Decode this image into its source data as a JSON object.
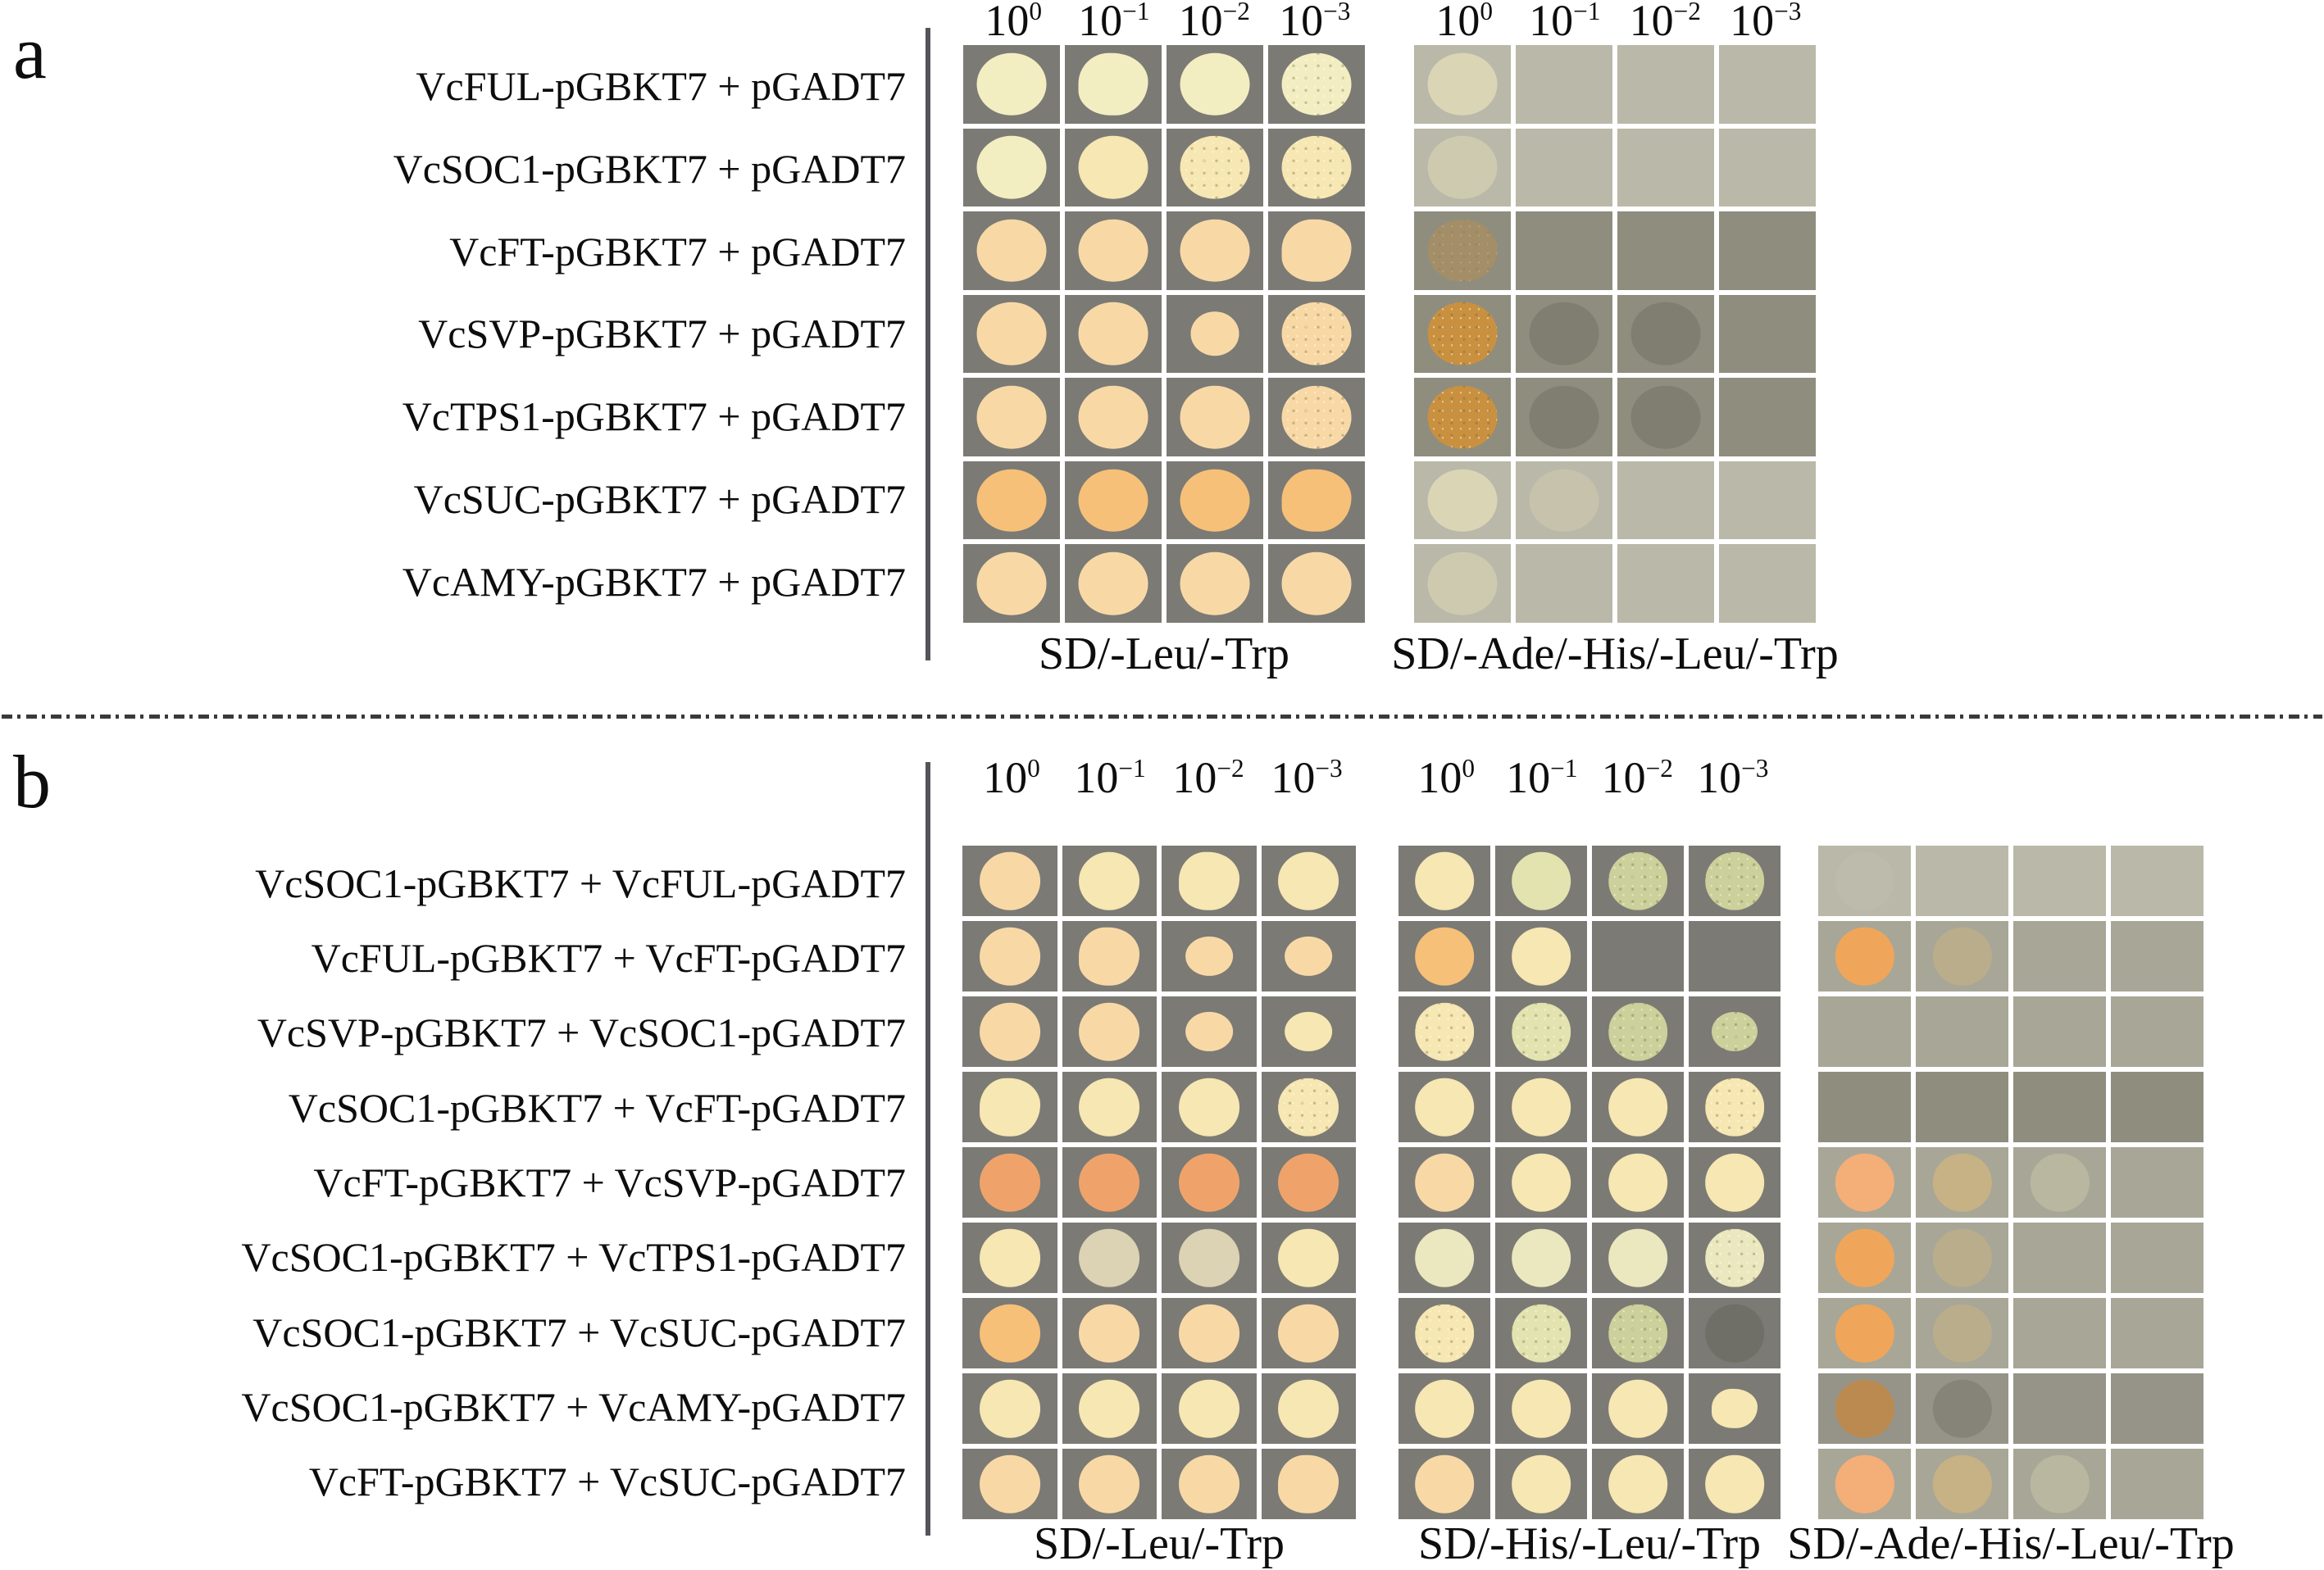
{
  "palette": {
    "plate_backgrounds": {
      "dark": "#7b7a75",
      "light": "#bab8a8",
      "mid": "#a8a696",
      "darker": "#8f8d7e",
      "dark2": "#969488"
    },
    "colony_colors": {
      "py": "#f3eec2",
      "cr": "#f6e7b3",
      "cd": "#dcd2b4",
      "wh": "#f8d9a6",
      "or": "#f6c078",
      "sa": "#efa36a",
      "ob": "#efa65b",
      "sl": "#f4ae77",
      "ot": "#c9913f",
      "mu": "#bb8a50",
      "tn": "#c6b285",
      "fc": "#dad5b5",
      "fg": "#bdbbac",
      "gs": "#ccd09a",
      "cg": "#e3e3b0",
      "pg": "#ebe8c0",
      "dk": "rgba(60,60,48,0.30)"
    }
  },
  "panels": [
    {
      "id": "a",
      "label": "a",
      "dilutions": [
        {
          "base": "10",
          "exp": "0"
        },
        {
          "base": "10",
          "exp": "−1"
        },
        {
          "base": "10",
          "exp": "−2"
        },
        {
          "base": "10",
          "exp": "−3"
        }
      ],
      "rows": [
        "VcFUL-pGBKT7 + pGADT7",
        "VcSOC1-pGBKT7 + pGADT7",
        "VcFT-pGBKT7 + pGADT7",
        "VcSVP-pGBKT7 + pGADT7",
        "VcTPS1-pGBKT7 + pGADT7",
        "VcSUC-pGBKT7 + pGADT7",
        "VcAMY-pGBKT7 + pGADT7"
      ],
      "plates": [
        {
          "caption": "SD/-Leu/-Trp",
          "dilutions_shown": true,
          "row_bg": "dark",
          "cells": [
            [
              "py",
              "py|irr",
              "py",
              "py|sp"
            ],
            [
              "py",
              "cr",
              "cr|sp",
              "cr|sp"
            ],
            [
              "wh",
              "wh",
              "wh",
              "wh|irr"
            ],
            [
              "wh",
              "wh",
              "wh|sm",
              "wh|sp"
            ],
            [
              "wh",
              "wh",
              "wh",
              "wh|sp"
            ],
            [
              "or",
              "or",
              "or",
              "or|irr"
            ],
            [
              "wh",
              "wh",
              "wh",
              "wh"
            ]
          ]
        },
        {
          "caption": "SD/-Ade/-His/-Leu/-Trp",
          "dilutions_shown": true,
          "row_bg": [
            "light",
            "light",
            "darker",
            "darker",
            "darker",
            "light",
            "light"
          ],
          "cells": [
            [
              "fc",
              "none",
              "none",
              "none"
            ],
            [
              "fc|f",
              "none",
              "none",
              "none"
            ],
            [
              "ot|sp f2",
              "none",
              "none",
              "none"
            ],
            [
              "ot|sp",
              "dk|f",
              "dk|f",
              "none"
            ],
            [
              "ot|sp",
              "dk|f",
              "dk|f",
              "none"
            ],
            [
              "fc",
              "fc|f2",
              "none",
              "none"
            ],
            [
              "fc|f",
              "none",
              "none",
              "none"
            ]
          ]
        }
      ]
    },
    {
      "id": "b",
      "label": "b",
      "dilutions": [
        {
          "base": "10",
          "exp": "0"
        },
        {
          "base": "10",
          "exp": "−1"
        },
        {
          "base": "10",
          "exp": "−2"
        },
        {
          "base": "10",
          "exp": "−3"
        }
      ],
      "rows": [
        "VcSOC1-pGBKT7 + VcFUL-pGADT7",
        "VcFUL-pGBKT7 + VcFT-pGADT7",
        "VcSVP-pGBKT7 + VcSOC1-pGADT7",
        "VcSOC1-pGBKT7 + VcFT-pGADT7",
        "VcFT-pGBKT7 + VcSVP-pGADT7",
        "VcSOC1-pGBKT7 + VcTPS1-pGADT7",
        "VcSOC1-pGBKT7 + VcSUC-pGADT7",
        "VcSOC1-pGBKT7 + VcAMY-pGADT7",
        "VcFT-pGBKT7 + VcSUC-pGADT7"
      ],
      "plates": [
        {
          "caption": "SD/-Leu/-Trp",
          "dilutions_shown": true,
          "row_bg": "dark",
          "cells": [
            [
              "wh",
              "cr",
              "cr|irr",
              "cr"
            ],
            [
              "wh",
              "wh|irr",
              "wh|sm",
              "wh|sm"
            ],
            [
              "wh",
              "wh",
              "wh|sm",
              "cr|sm"
            ],
            [
              "cr|irr",
              "cr",
              "cr",
              "cr|sp"
            ],
            [
              "sa",
              "sa",
              "sa",
              "sa"
            ],
            [
              "cr",
              "cd",
              "cd",
              "cr"
            ],
            [
              "or",
              "wh",
              "wh",
              "wh"
            ],
            [
              "cr",
              "cr",
              "cr",
              "cr"
            ],
            [
              "wh",
              "wh",
              "wh",
              "wh|irr"
            ]
          ]
        },
        {
          "caption": "SD/-His/-Leu/-Trp",
          "dilutions_shown": true,
          "row_bg": "dark",
          "cells": [
            [
              "cr",
              "cg",
              "gs|sp",
              "gs|sp"
            ],
            [
              "or",
              "cr",
              "dots",
              "none"
            ],
            [
              "cr|sp",
              "cg|sp",
              "gs|sp",
              "gs|sp sm"
            ],
            [
              "cr",
              "cr",
              "cr",
              "cr|sp"
            ],
            [
              "wh",
              "cr",
              "cr",
              "cr"
            ],
            [
              "pg",
              "pg",
              "pg",
              "pg|sp"
            ],
            [
              "cr|sp",
              "cg|sp",
              "gs|sp",
              "dk|f"
            ],
            [
              "cr",
              "cr",
              "cr",
              "cr|sm irr"
            ],
            [
              "wh",
              "cr",
              "cr",
              "cr"
            ]
          ]
        },
        {
          "caption": "SD/-Ade/-His/-Leu/-Trp",
          "dilutions_shown": false,
          "row_bg": [
            "light",
            "mid",
            "mid",
            "darker",
            "mid",
            "mid",
            "mid",
            "dark2",
            "mid"
          ],
          "cells": [
            [
              "fg",
              "none",
              "none",
              "none"
            ],
            [
              "ob",
              "tn|f",
              "none",
              "none"
            ],
            [
              "none",
              "none",
              "none",
              "none"
            ],
            [
              "none",
              "none",
              "none",
              "none"
            ],
            [
              "sl",
              "tn",
              "fc|f2",
              "none"
            ],
            [
              "ob",
              "tn|f",
              "none",
              "none"
            ],
            [
              "ob",
              "tn|f",
              "none",
              "none"
            ],
            [
              "mu",
              "dk|f",
              "none",
              "none"
            ],
            [
              "sl",
              "tn",
              "fc|f2",
              "none"
            ]
          ]
        }
      ]
    }
  ]
}
